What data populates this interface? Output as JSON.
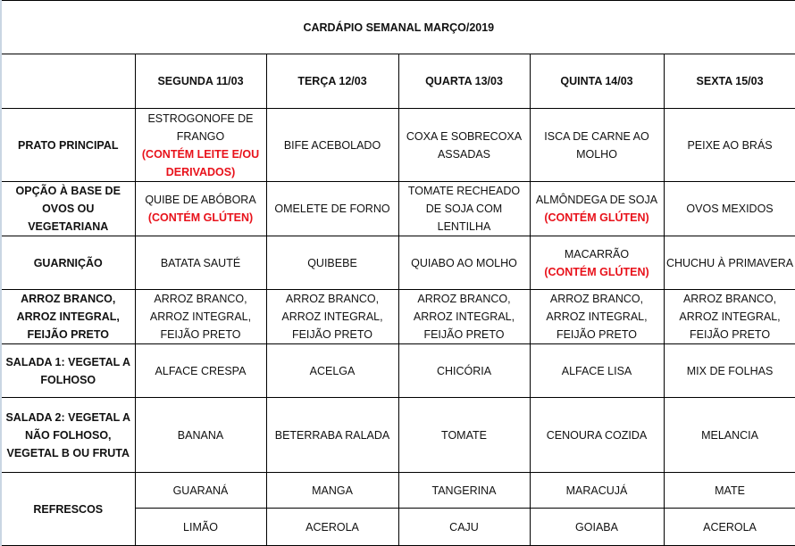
{
  "title": "CARDÁPIO SEMANAL MARÇO/2019",
  "colors": {
    "warning": "#e8121b",
    "border": "#000000"
  },
  "days": [
    "SEGUNDA 11/03",
    "TERÇA 12/03",
    "QUARTA 13/03",
    "QUINTA 14/03",
    "SEXTA 15/03"
  ],
  "rows": [
    {
      "label": "PRATO PRINCIPAL",
      "cells": [
        {
          "text": "ESTROGONOFE DE FRANGO",
          "warn": "(CONTÉM LEITE E/OU DERIVADOS)"
        },
        {
          "text": "BIFE ACEBOLADO"
        },
        {
          "text": "COXA E SOBRECOXA ASSADAS"
        },
        {
          "text": "ISCA DE CARNE AO MOLHO"
        },
        {
          "text": "PEIXE AO BRÁS"
        }
      ]
    },
    {
      "label": "OPÇÃO À BASE DE OVOS OU VEGETARIANA",
      "cells": [
        {
          "text": "QUIBE DE ABÓBORA",
          "warn": "(CONTÉM GLÚTEN)"
        },
        {
          "text": "OMELETE DE FORNO"
        },
        {
          "text": "TOMATE RECHEADO DE SOJA COM LENTILHA"
        },
        {
          "text": "ALMÔNDEGA DE SOJA",
          "warn": "(CONTÉM GLÚTEN)"
        },
        {
          "text": "OVOS MEXIDOS"
        }
      ]
    },
    {
      "label": "GUARNIÇÃO",
      "cells": [
        {
          "text": "BATATA SAUTÉ"
        },
        {
          "text": "QUIBEBE"
        },
        {
          "text": "QUIABO AO MOLHO"
        },
        {
          "text": "MACARRÃO",
          "warn": "(CONTÉM GLÚTEN)"
        },
        {
          "text": "CHUCHU À PRIMAVERA"
        }
      ]
    },
    {
      "label": "ARROZ BRANCO, ARROZ INTEGRAL, FEIJÃO PRETO",
      "cells": [
        {
          "text": "ARROZ BRANCO, ARROZ INTEGRAL, FEIJÃO PRETO"
        },
        {
          "text": "ARROZ BRANCO, ARROZ INTEGRAL, FEIJÃO PRETO"
        },
        {
          "text": "ARROZ BRANCO, ARROZ INTEGRAL, FEIJÃO PRETO"
        },
        {
          "text": "ARROZ BRANCO, ARROZ INTEGRAL, FEIJÃO PRETO"
        },
        {
          "text": "ARROZ BRANCO, ARROZ INTEGRAL, FEIJÃO PRETO"
        }
      ]
    },
    {
      "label": "SALADA 1: VEGETAL A FOLHOSO",
      "cells": [
        {
          "text": "ALFACE CRESPA"
        },
        {
          "text": "ACELGA"
        },
        {
          "text": "CHICÓRIA"
        },
        {
          "text": "ALFACE LISA"
        },
        {
          "text": "MIX DE FOLHAS"
        }
      ]
    },
    {
      "label": "SALADA 2: VEGETAL A NÃO FOLHOSO, VEGETAL B OU FRUTA",
      "cells": [
        {
          "text": "BANANA"
        },
        {
          "text": "BETERRABA RALADA"
        },
        {
          "text": "TOMATE"
        },
        {
          "text": "CENOURA COZIDA"
        },
        {
          "text": "MELANCIA"
        }
      ]
    }
  ],
  "refrescos": {
    "label": "REFRESCOS",
    "lines": [
      [
        "GUARANÁ",
        "MANGA",
        "TANGERINA",
        "MARACUJÁ",
        "MATE"
      ],
      [
        "LIMÃO",
        "ACEROLA",
        "CAJU",
        "GOIABA",
        "ACEROLA"
      ]
    ]
  }
}
